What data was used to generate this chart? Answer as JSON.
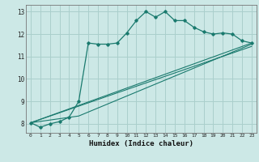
{
  "xlabel": "Humidex (Indice chaleur)",
  "ylabel": "",
  "bg_color": "#cce8e6",
  "grid_color": "#aacfcc",
  "line_color": "#1a7a6e",
  "xlim": [
    -0.5,
    23.5
  ],
  "ylim": [
    7.6,
    13.3
  ],
  "xticks": [
    0,
    1,
    2,
    3,
    4,
    5,
    6,
    7,
    8,
    9,
    10,
    11,
    12,
    13,
    14,
    15,
    16,
    17,
    18,
    19,
    20,
    21,
    22,
    23
  ],
  "yticks": [
    8,
    9,
    10,
    11,
    12,
    13
  ],
  "series1_x": [
    0,
    1,
    2,
    3,
    4,
    5,
    6,
    7,
    8,
    9,
    10,
    11,
    12,
    13,
    14,
    15,
    16,
    17,
    18,
    19,
    20,
    21,
    22,
    23
  ],
  "series1_y": [
    8.05,
    7.85,
    8.0,
    8.1,
    8.3,
    9.0,
    11.6,
    11.55,
    11.55,
    11.6,
    12.05,
    12.6,
    13.0,
    12.75,
    13.0,
    12.6,
    12.6,
    12.3,
    12.1,
    12.0,
    12.05,
    12.0,
    11.7,
    11.6
  ],
  "series2_x": [
    0,
    23
  ],
  "series2_y": [
    8.05,
    11.6
  ],
  "series3_x": [
    0,
    23
  ],
  "series3_y": [
    8.05,
    11.45
  ],
  "series4_x": [
    0,
    5,
    23
  ],
  "series4_y": [
    8.05,
    8.35,
    11.55
  ]
}
